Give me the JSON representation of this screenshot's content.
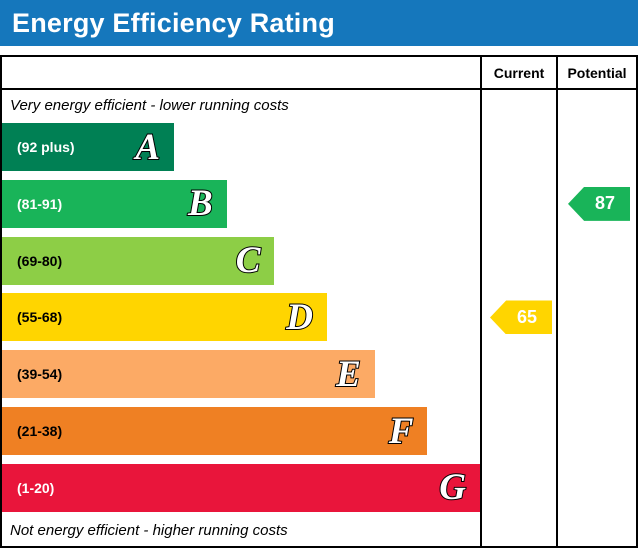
{
  "title": "Energy Efficiency Rating",
  "columns": {
    "current": "Current",
    "potential": "Potential"
  },
  "notes": {
    "top": "Very energy efficient - lower running costs",
    "bottom": "Not energy efficient - higher running costs"
  },
  "colors": {
    "header_bg": "#1577bc",
    "header_text": "#ffffff",
    "border": "#000000"
  },
  "chart_data": {
    "type": "bar",
    "title": "Energy Efficiency Rating",
    "legend_position": "none",
    "bands": [
      {
        "letter": "A",
        "range_label": "(92 plus)",
        "color": "#008054",
        "width_pct": 36,
        "label_color": "#ffffff"
      },
      {
        "letter": "B",
        "range_label": "(81-91)",
        "color": "#19b459",
        "width_pct": 47,
        "label_color": "#ffffff"
      },
      {
        "letter": "C",
        "range_label": "(69-80)",
        "color": "#8dce46",
        "width_pct": 57,
        "label_color": "#000000"
      },
      {
        "letter": "D",
        "range_label": "(55-68)",
        "color": "#ffd500",
        "width_pct": 68,
        "label_color": "#000000"
      },
      {
        "letter": "E",
        "range_label": "(39-54)",
        "color": "#fcaa65",
        "width_pct": 78,
        "label_color": "#000000"
      },
      {
        "letter": "F",
        "range_label": "(21-38)",
        "color": "#ef8023",
        "width_pct": 89,
        "label_color": "#000000"
      },
      {
        "letter": "G",
        "range_label": "(1-20)",
        "color": "#e9153b",
        "width_pct": 100,
        "label_color": "#ffffff"
      }
    ],
    "current": {
      "value": 65,
      "band": "D",
      "color": "#ffd500",
      "text_color": "#ffffff"
    },
    "potential": {
      "value": 87,
      "band": "B",
      "color": "#19b459",
      "text_color": "#ffffff"
    }
  }
}
